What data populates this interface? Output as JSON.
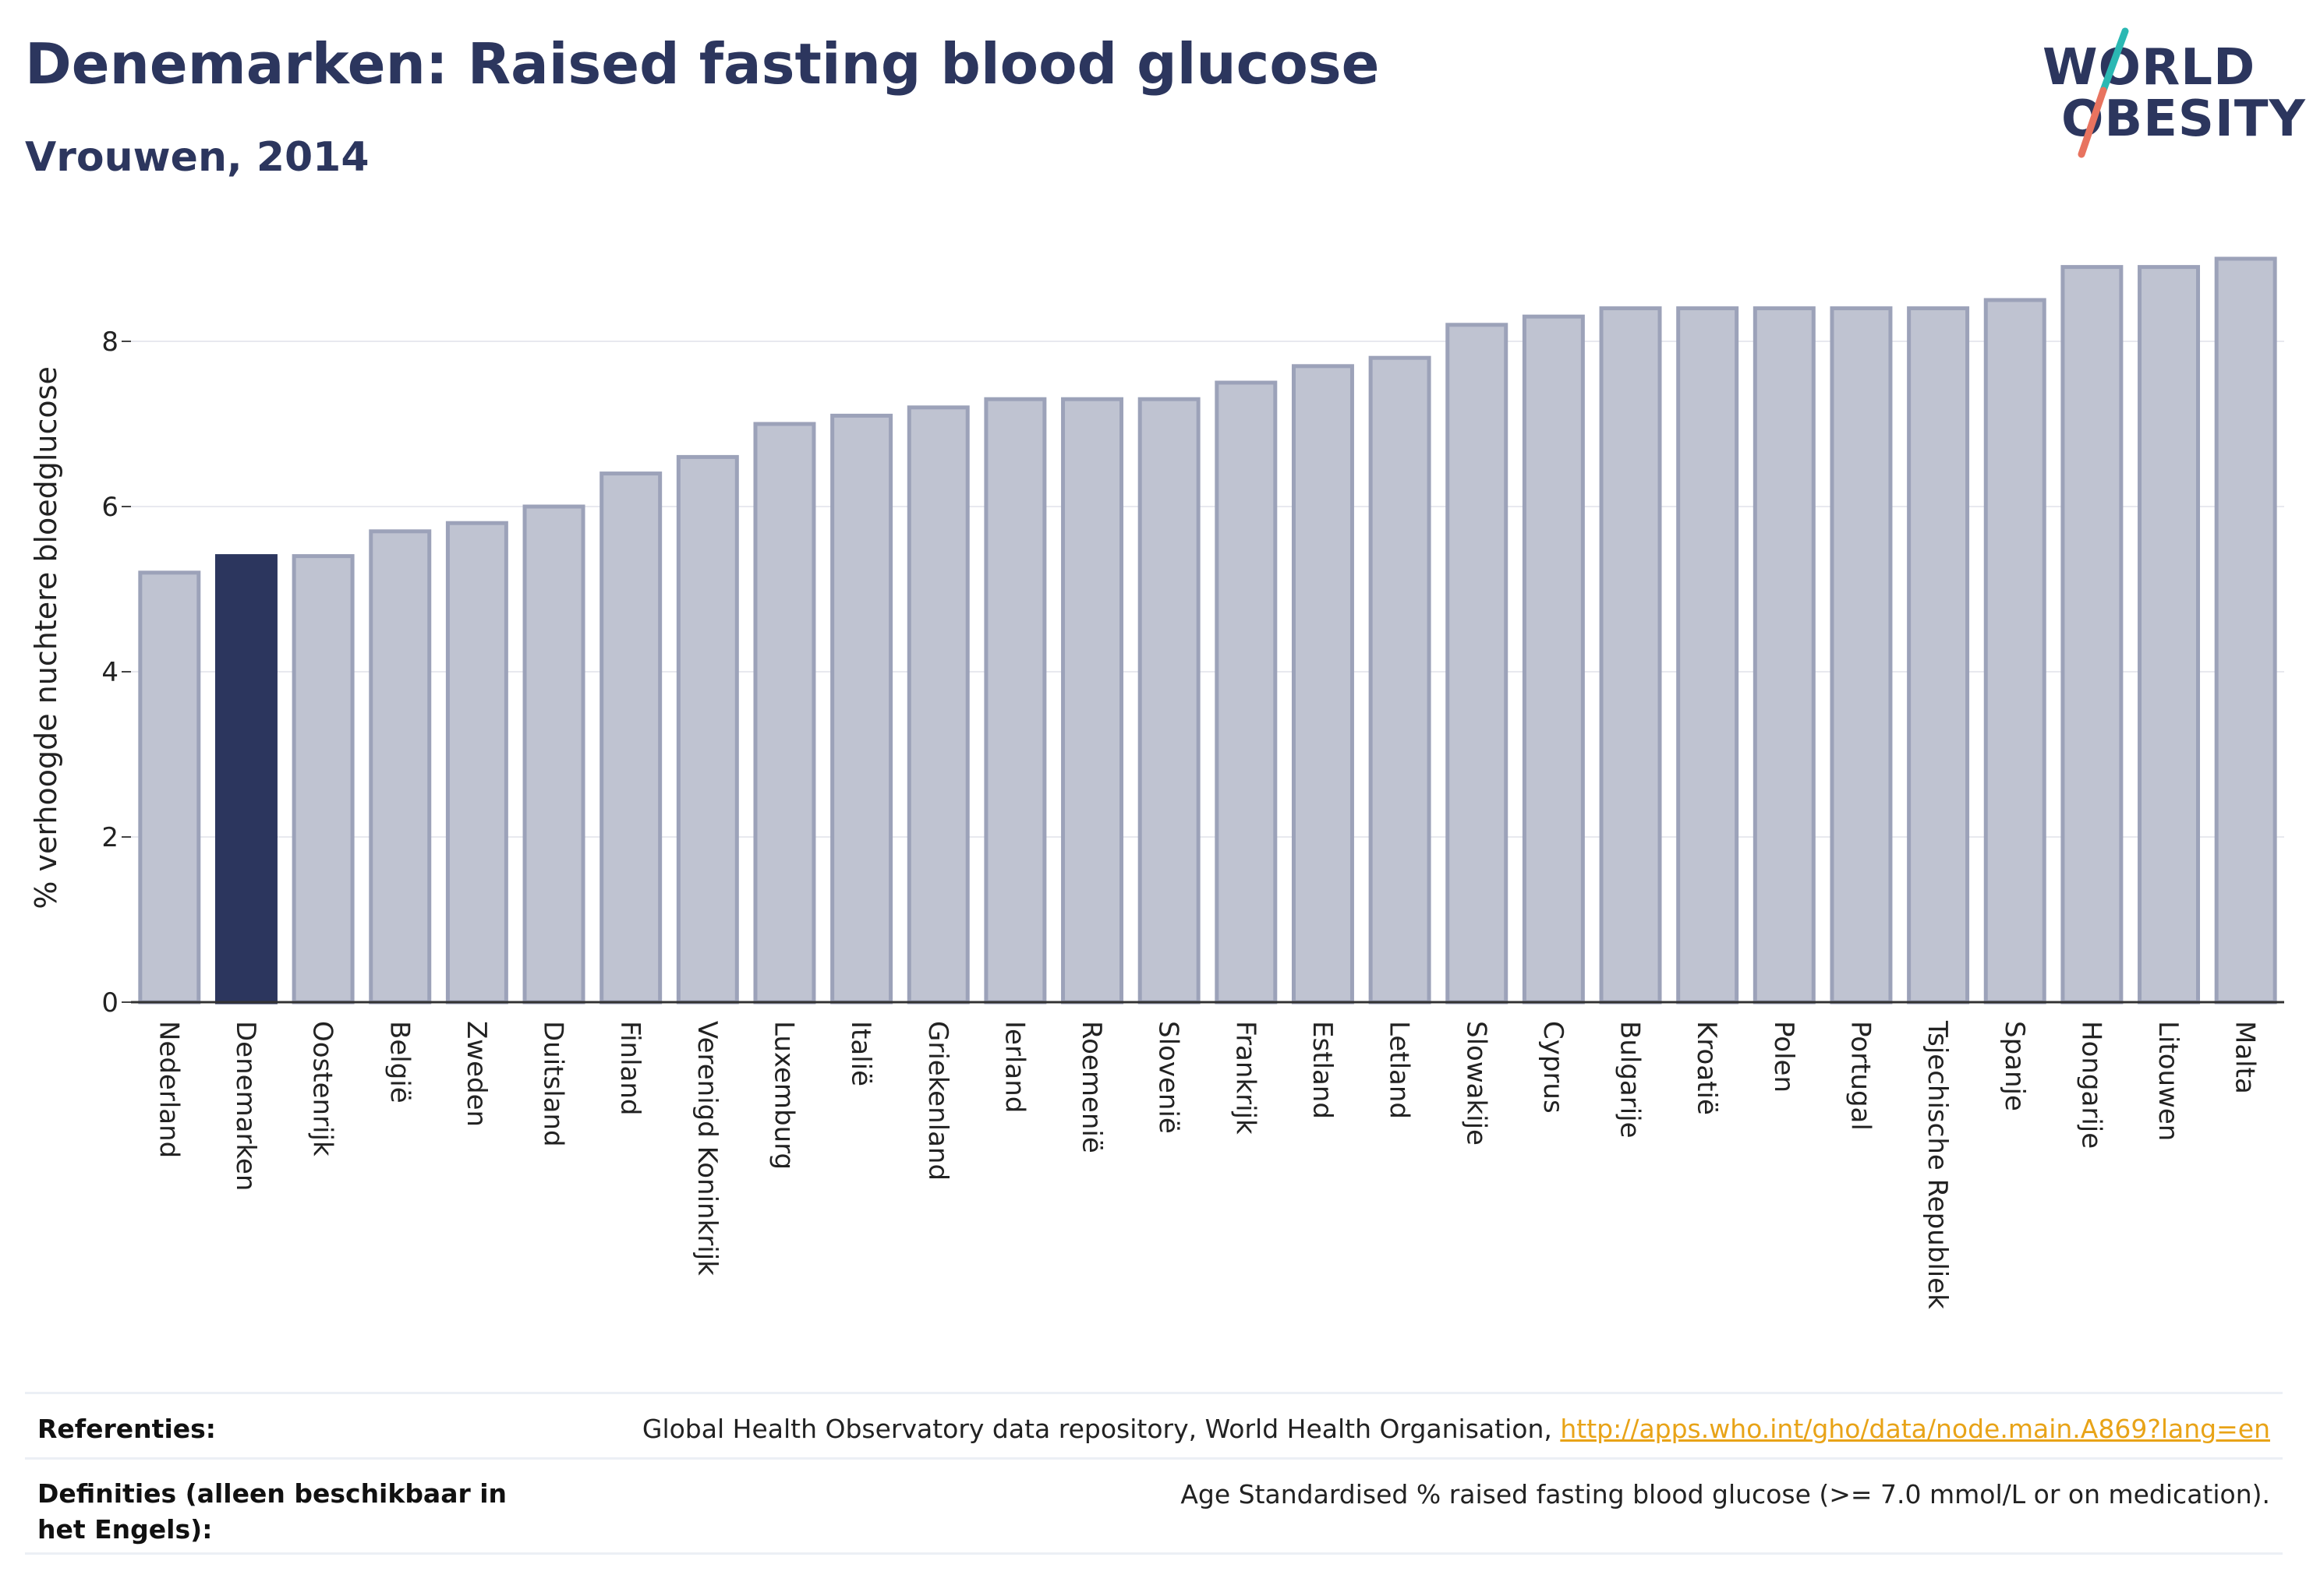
{
  "header": {
    "title": "Denemarken: Raised fasting blood glucose",
    "subtitle": "Vrouwen, 2014"
  },
  "logo": {
    "line1": "WORLD",
    "line2": "OBESITY"
  },
  "colors": {
    "highlight": "#2c365e",
    "bar_fill": "#bfc3d1",
    "bar_edge": "#9ca2b9",
    "text": "#2c365e",
    "link": "#e8a317",
    "logo_teal": "#2bb8b3",
    "logo_coral": "#e8735f"
  },
  "chart_data": {
    "type": "bar",
    "ylabel": "% verhoogde nuchtere bloedglucose",
    "xlabel": "",
    "ylim": [
      0,
      9.2
    ],
    "yticks": [
      0,
      2,
      4,
      6,
      8
    ],
    "highlight": "Denemarken",
    "categories": [
      "Nederland",
      "Denemarken",
      "Oostenrijk",
      "België",
      "Zweden",
      "Duitsland",
      "Finland",
      "Verenigd Koninkrijk",
      "Luxemburg",
      "Italië",
      "Griekenland",
      "Ierland",
      "Roemenië",
      "Slovenië",
      "Frankrijk",
      "Estland",
      "Letland",
      "Slowakije",
      "Cyprus",
      "Bulgarije",
      "Kroatië",
      "Polen",
      "Portugal",
      "Tsjechische Republiek",
      "Spanje",
      "Hongarije",
      "Litouwen",
      "Malta"
    ],
    "values": [
      5.2,
      5.4,
      5.4,
      5.7,
      5.8,
      6.0,
      6.4,
      6.6,
      7.0,
      7.1,
      7.2,
      7.3,
      7.3,
      7.3,
      7.5,
      7.7,
      7.8,
      8.2,
      8.3,
      8.4,
      8.4,
      8.4,
      8.4,
      8.4,
      8.5,
      8.9,
      8.9,
      9.0
    ],
    "grid": true
  },
  "footer": {
    "ref_label": "Referenties:",
    "ref_text": "Global Health Observatory data repository, World Health Organisation, ",
    "ref_link": "http://apps.who.int/gho/data/node.main.A869?lang=en",
    "def_label": "Definities (alleen beschikbaar in het Engels):",
    "def_text": "Age Standardised % raised fasting blood glucose (>= 7.0 mmol/L or on medication)."
  }
}
